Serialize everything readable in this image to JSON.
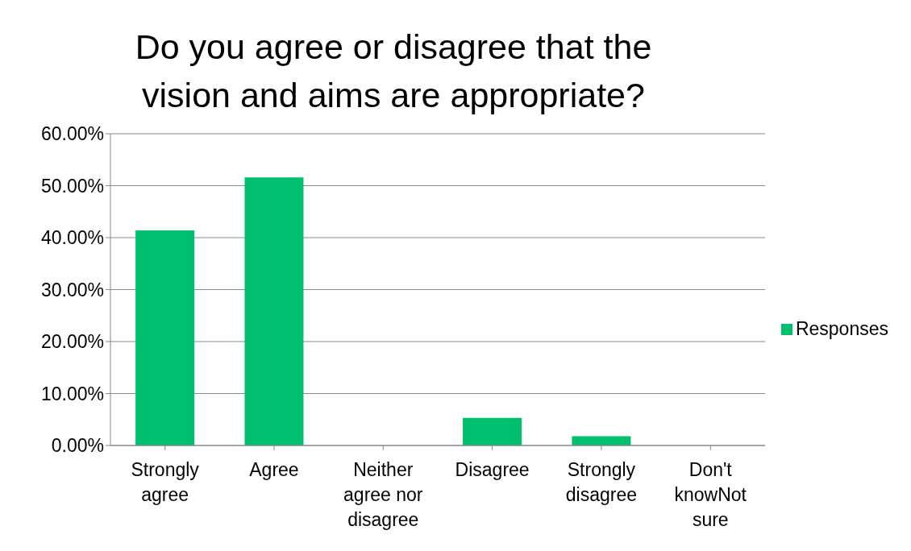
{
  "chart_data": {
    "type": "bar",
    "title": "Do you agree or disagree that the vision and aims are appropriate?",
    "categories": [
      "Strongly agree",
      "Agree",
      "Neither agree nor disagree",
      "Disagree",
      "Strongly disagree",
      "Don't knowNot sure"
    ],
    "series": [
      {
        "name": "Responses",
        "color": "#00c06f",
        "values": [
          41.4,
          51.6,
          0,
          5.3,
          1.8,
          0
        ]
      }
    ],
    "ylim": [
      0,
      60
    ],
    "yticks": [
      {
        "value": 0,
        "label": "0.00%"
      },
      {
        "value": 10,
        "label": "10.00%"
      },
      {
        "value": 20,
        "label": "20.00%"
      },
      {
        "value": 30,
        "label": "30.00%"
      },
      {
        "value": 40,
        "label": "40.00%"
      },
      {
        "value": 50,
        "label": "50.00%"
      },
      {
        "value": 60,
        "label": "60.00%"
      }
    ],
    "grid": "y",
    "legend": "right"
  }
}
